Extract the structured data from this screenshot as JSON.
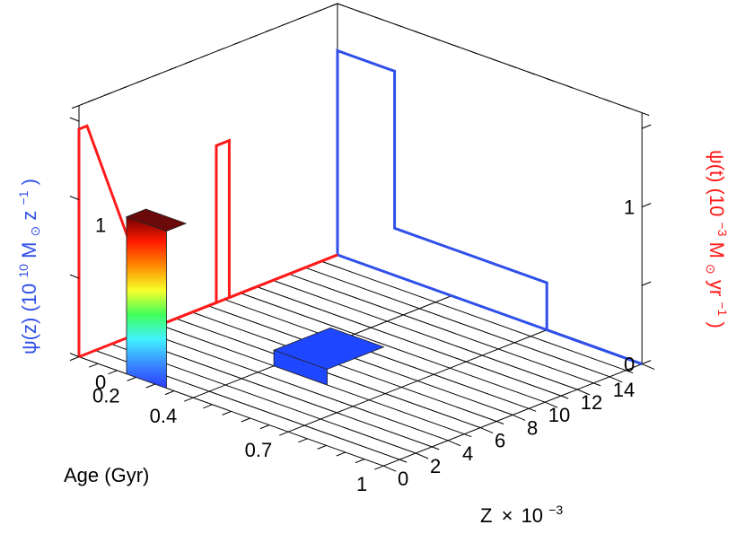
{
  "chart_data": {
    "type": "3d-histogram",
    "colors": {
      "axes": "#000000",
      "left_panel": "#2f4fe8",
      "right_panel": "#ff1a1a",
      "floor_bar": "#1f47ff",
      "colormap": [
        "#2a3bff",
        "#3b8bff",
        "#3ff2ff",
        "#40ff5a",
        "#f7ff2a",
        "#ff8a00",
        "#ff1a00",
        "#700000"
      ]
    },
    "axes": {
      "age": {
        "label": "Age (Gyr)",
        "ticks": [
          "0",
          "2",
          "4",
          "6",
          "8",
          "10",
          "12",
          "14"
        ],
        "range": [
          0,
          16
        ]
      },
      "metallicity": {
        "label": "Z",
        "label_times": "×",
        "label_base": "10",
        "label_exp": "−3",
        "ticks": [
          "0.2",
          "0.4",
          "0.7",
          "1"
        ]
      },
      "psi_z": {
        "label_main": "ψ(z) (10",
        "label_exp1": "10",
        "label_mid": " M",
        "label_sun": "⊙",
        "label_unit": " z",
        "label_exp2": "−1",
        "label_close": ")",
        "ticks": [
          "0",
          "1"
        ]
      },
      "psi_t": {
        "label_main": "ψ(t) (10",
        "label_exp1": "−3",
        "label_mid": " M",
        "label_sun": "⊙",
        "label_unit": " yr",
        "label_exp2": "−1",
        "label_close": ")",
        "ticks": [
          "0",
          "1"
        ]
      }
    },
    "bars_3d": [
      {
        "name": "tall-bar",
        "age_gyr": [
          0,
          0.5
        ],
        "z_bin": "0.7–1",
        "height": 1.0,
        "colored": true
      },
      {
        "name": "floor-bar",
        "age_gyr": [
          5,
          8.5
        ],
        "z_bin": "0.2–0.4",
        "height": 0.1,
        "colored": false
      }
    ],
    "psi_z_panel": {
      "bins": [
        {
          "z_range": "1–0.7",
          "value": 0.0
        },
        {
          "z_range": "0.7–0.4",
          "value": 0.3
        },
        {
          "z_range": "0.4–0.2",
          "value": 0.3
        },
        {
          "z_range": "0.2–0",
          "value": 1.3
        }
      ]
    },
    "psi_t_panel": {
      "bins": [
        {
          "age_gyr": [
            0,
            0.5
          ],
          "value": 1.45
        },
        {
          "age_gyr": [
            5,
            8.5
          ],
          "value": 0.0
        },
        {
          "age_gyr": [
            8.5,
            9.3
          ],
          "value": 1.0
        },
        {
          "age_gyr": [
            9.3,
            16
          ],
          "value": 0.0
        }
      ]
    }
  }
}
